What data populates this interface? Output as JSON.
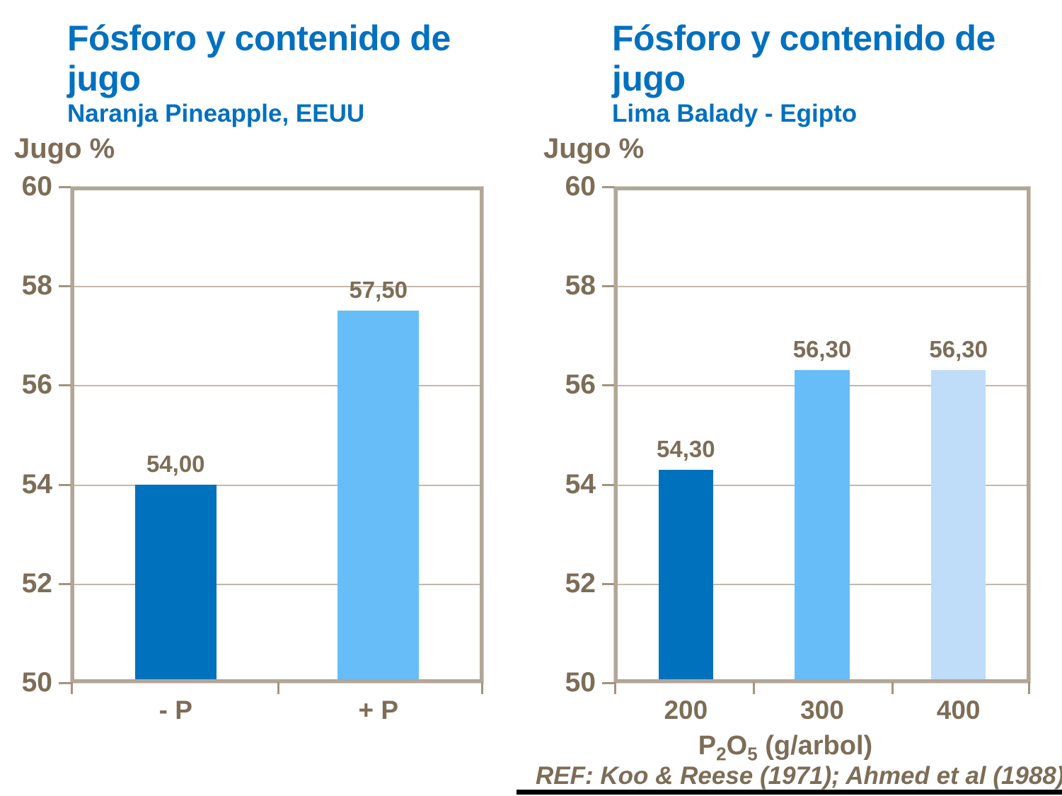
{
  "page": {
    "background": "#FFFFFF"
  },
  "footer": {
    "reference": "REF: Koo & Reese (1971); Ahmed et al (1988)"
  },
  "colors": {
    "title_blue": "#0070C0",
    "label_brown": "#7D6D57",
    "plot_border_tan": "#B2A697",
    "gridline": "#C2B8AA",
    "bar_dark_blue": "#0071BD",
    "bar_light_blue": "#67BDF8",
    "bar_pale_blue": "#BFDDF8",
    "bottom_rule": "#000000"
  },
  "chart_data": [
    {
      "type": "bar",
      "title": "Fósforo y contenido de jugo",
      "subtitle": "Naranja Pineapple, EEUU",
      "ylabel": "Jugo %",
      "xlabel": "",
      "categories": [
        "- P",
        "+ P"
      ],
      "values": [
        54.0,
        57.5
      ],
      "value_labels": [
        "54,00",
        "57,50"
      ],
      "bar_colors": [
        "#0071BD",
        "#67BDF8"
      ],
      "ylim": [
        50,
        60
      ],
      "yticks": [
        60,
        58,
        56,
        54,
        52,
        50
      ],
      "grid": true,
      "legend": "none"
    },
    {
      "type": "bar",
      "title": "Fósforo y contenido de jugo",
      "subtitle": "Lima Balady - Egipto",
      "ylabel": "Jugo %",
      "xlabel": "P2O5 (g/arbol)",
      "xlabel_parts": {
        "base1": "P",
        "sub1": "2",
        "base2": "O",
        "sub2": "5",
        "rest": " (g/arbol)"
      },
      "categories": [
        "200",
        "300",
        "400"
      ],
      "values": [
        54.3,
        56.3,
        56.3
      ],
      "value_labels": [
        "54,30",
        "56,30",
        "56,30"
      ],
      "bar_colors": [
        "#0071BD",
        "#67BDF8",
        "#BFDDF8"
      ],
      "ylim": [
        50,
        60
      ],
      "yticks": [
        60,
        58,
        56,
        54,
        52,
        50
      ],
      "grid": true,
      "legend": "none"
    }
  ]
}
